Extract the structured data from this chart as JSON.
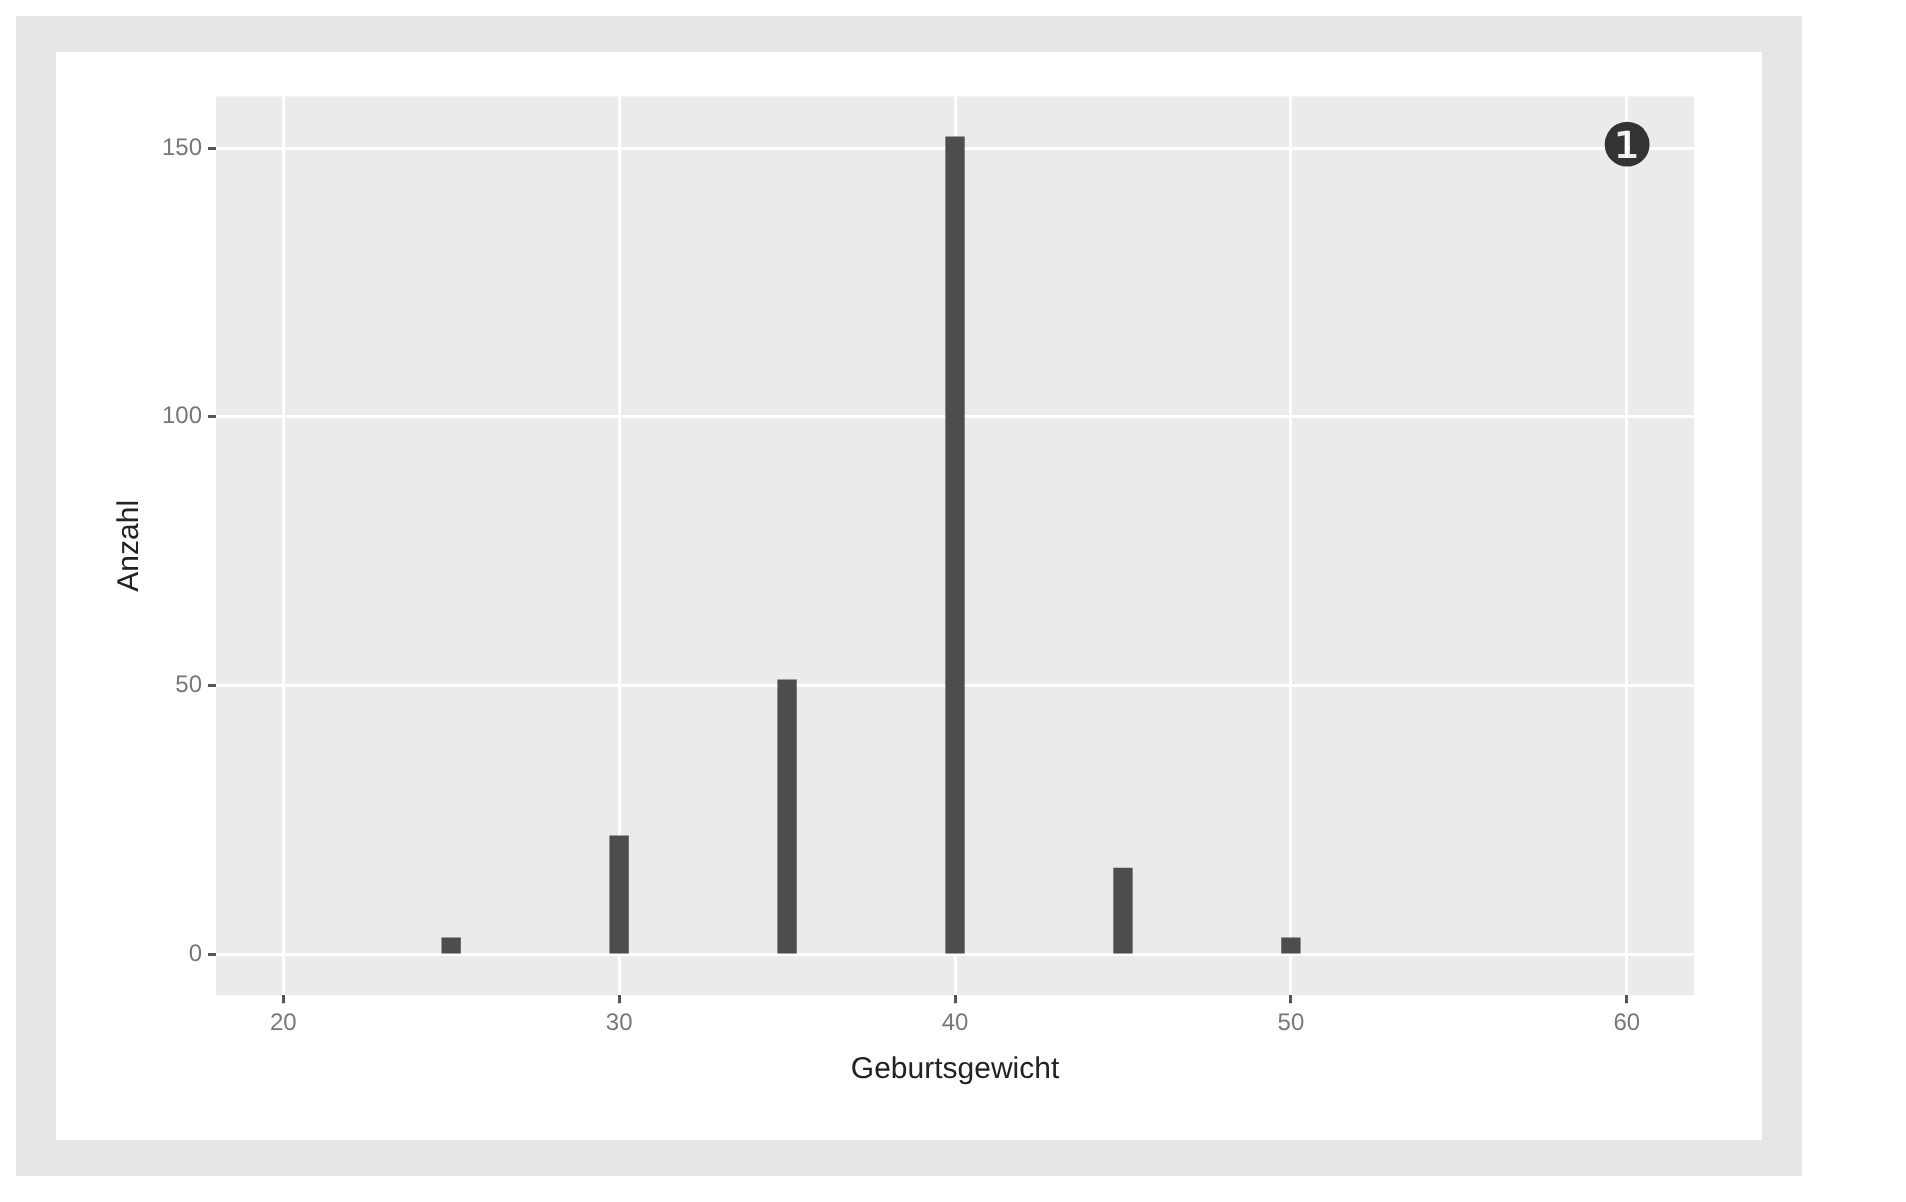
{
  "chart_data": {
    "type": "bar",
    "xlabel": "Geburtsgewicht",
    "ylabel": "Anzahl",
    "annotations": [
      "❶"
    ],
    "x": [
      25,
      30,
      35,
      40,
      45,
      50
    ],
    "values": [
      3,
      22,
      51,
      152,
      16,
      3
    ],
    "color": "#4d4d4d",
    "xlim": [
      18,
      62
    ],
    "xticks": [
      20,
      30,
      40,
      50,
      60
    ],
    "ylim": [
      -7.6,
      159.6
    ],
    "yticks": [
      0,
      50,
      100,
      150
    ],
    "grid": true,
    "legend": false
  }
}
